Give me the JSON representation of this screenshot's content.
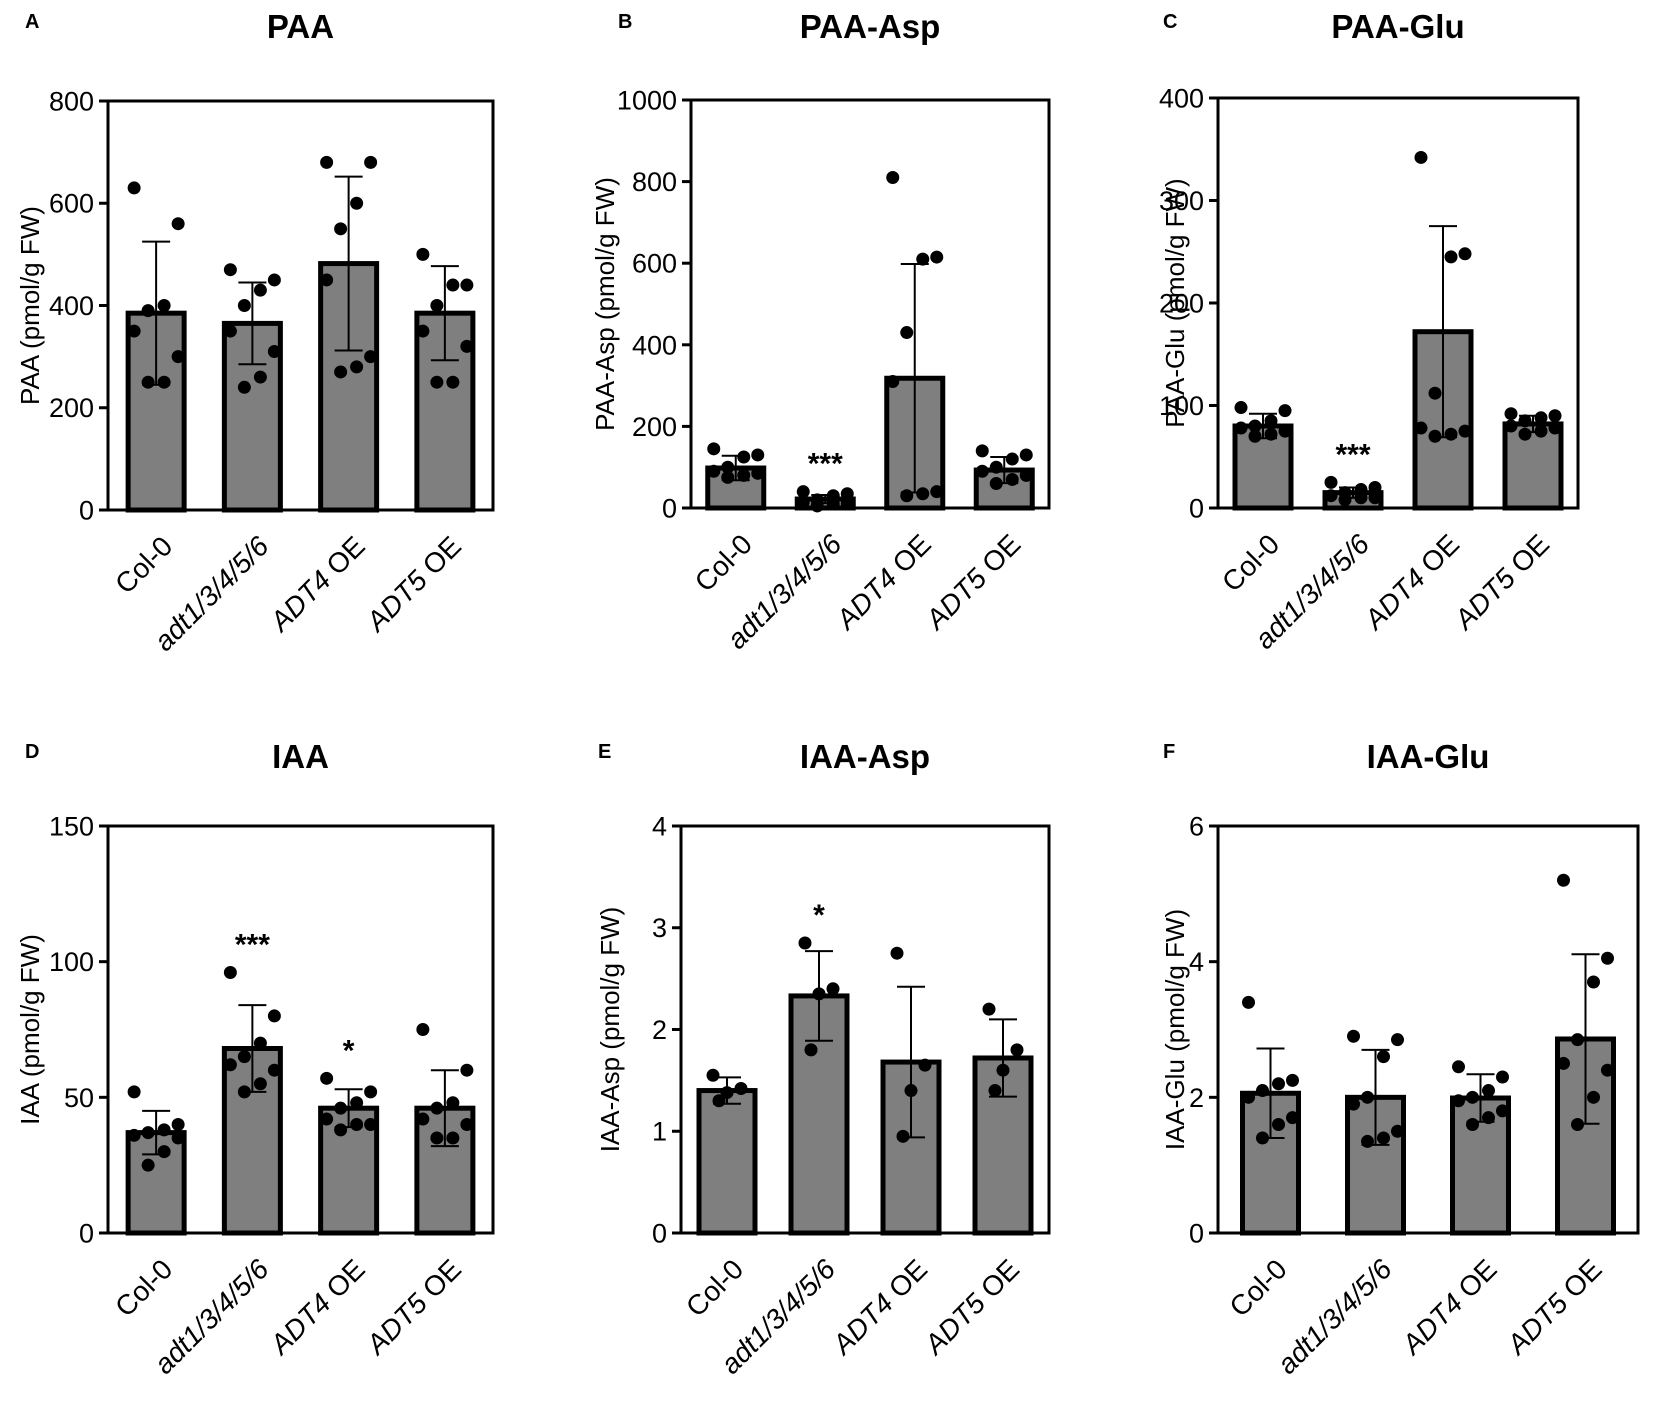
{
  "chart_data": [
    {
      "type": "bar",
      "panel": "A",
      "title": "PAA",
      "ylabel": "PAA (pmol/g FW)",
      "ylim": [
        0,
        800
      ],
      "yticks": [
        0,
        200,
        400,
        600,
        800
      ],
      "categories": [
        "Col-0",
        "adt1/3/4/5/6",
        "ADT4 OE",
        "ADT5 OE"
      ],
      "italic_parts": [
        "",
        "adt1/3/4/5/6",
        "ADT4",
        "ADT5"
      ],
      "values": [
        385,
        365,
        482,
        385
      ],
      "sd": [
        140,
        80,
        170,
        92
      ],
      "points": [
        [
          630,
          560,
          400,
          390,
          350,
          300,
          250,
          250
        ],
        [
          470,
          450,
          430,
          400,
          350,
          310,
          260,
          240
        ],
        [
          680,
          680,
          600,
          550,
          450,
          300,
          280,
          270
        ],
        [
          500,
          440,
          440,
          400,
          350,
          320,
          250,
          250
        ]
      ],
      "significance": [
        "",
        "",
        "",
        ""
      ]
    },
    {
      "type": "bar",
      "panel": "B",
      "title": "PAA-Asp",
      "ylabel": "PAA-Asp (pmol/g FW)",
      "ylim": [
        0,
        1000
      ],
      "yticks": [
        0,
        200,
        400,
        600,
        800,
        1000
      ],
      "categories": [
        "Col-0",
        "adt1/3/4/5/6",
        "ADT4 OE",
        "ADT5 OE"
      ],
      "italic_parts": [
        "",
        "adt1/3/4/5/6",
        "ADT4",
        "ADT5"
      ],
      "values": [
        98,
        22,
        318,
        93
      ],
      "sd": [
        30,
        10,
        280,
        32
      ],
      "points": [
        [
          145,
          130,
          125,
          100,
          90,
          85,
          80,
          75
        ],
        [
          40,
          35,
          30,
          20,
          15,
          10,
          10,
          5
        ],
        [
          810,
          615,
          610,
          430,
          310,
          40,
          35,
          30
        ],
        [
          140,
          130,
          120,
          100,
          90,
          80,
          70,
          60
        ]
      ],
      "significance": [
        "",
        "***",
        "",
        ""
      ]
    },
    {
      "type": "bar",
      "panel": "C",
      "title": "PAA-Glu",
      "ylabel": "PAA-Glu (pmol/g FW)",
      "ylim": [
        0,
        400
      ],
      "yticks": [
        0,
        100,
        200,
        300,
        400
      ],
      "categories": [
        "Col-0",
        "adt1/3/4/5/6",
        "ADT4 OE",
        "ADT5 OE"
      ],
      "italic_parts": [
        "",
        "adt1/3/4/5/6",
        "ADT4",
        "ADT5"
      ],
      "values": [
        80,
        15,
        172,
        82
      ],
      "sd": [
        12,
        5,
        103,
        8
      ],
      "points": [
        [
          98,
          95,
          85,
          80,
          78,
          75,
          72,
          70
        ],
        [
          25,
          20,
          18,
          15,
          12,
          10,
          10,
          8
        ],
        [
          342,
          248,
          245,
          112,
          78,
          75,
          72,
          70
        ],
        [
          92,
          90,
          88,
          85,
          80,
          78,
          75,
          72
        ]
      ],
      "significance": [
        "",
        "***",
        "",
        ""
      ]
    },
    {
      "type": "bar",
      "panel": "D",
      "title": "IAA",
      "ylabel": "IAA (pmol/g FW)",
      "ylim": [
        0,
        150
      ],
      "yticks": [
        0,
        50,
        100,
        150
      ],
      "categories": [
        "Col-0",
        "adt1/3/4/5/6",
        "ADT4 OE",
        "ADT5 OE"
      ],
      "italic_parts": [
        "",
        "adt1/3/4/5/6",
        "ADT4",
        "ADT5"
      ],
      "values": [
        37,
        68,
        46,
        46
      ],
      "sd": [
        8,
        16,
        7,
        14
      ],
      "points": [
        [
          52,
          40,
          38,
          37,
          36,
          35,
          30,
          25
        ],
        [
          96,
          80,
          70,
          65,
          62,
          60,
          55,
          52
        ],
        [
          57,
          52,
          48,
          46,
          42,
          40,
          40,
          38
        ],
        [
          75,
          60,
          48,
          46,
          42,
          40,
          35,
          35
        ]
      ],
      "significance": [
        "",
        "***",
        "*",
        ""
      ]
    },
    {
      "type": "bar",
      "panel": "E",
      "title": "IAA-Asp",
      "ylabel": "IAA-Asp (pmol/g FW)",
      "ylim": [
        0,
        4
      ],
      "yticks": [
        0,
        1,
        2,
        3,
        4
      ],
      "categories": [
        "Col-0",
        "adt1/3/4/5/6",
        "ADT4 OE",
        "ADT5 OE"
      ],
      "italic_parts": [
        "",
        "adt1/3/4/5/6",
        "ADT4",
        "ADT5"
      ],
      "values": [
        1.4,
        2.33,
        1.68,
        1.72
      ],
      "sd": [
        0.13,
        0.44,
        0.74,
        0.38
      ],
      "points": [
        [
          1.55,
          1.42,
          1.38,
          1.3
        ],
        [
          2.85,
          2.4,
          2.35,
          1.8
        ],
        [
          2.75,
          1.65,
          1.4,
          0.95
        ],
        [
          2.2,
          1.8,
          1.6,
          1.4
        ]
      ],
      "significance": [
        "",
        "*",
        "",
        ""
      ]
    },
    {
      "type": "bar",
      "panel": "F",
      "title": "IAA-Glu",
      "ylabel": "IAA-Glu (pmol/g FW)",
      "ylim": [
        0,
        6
      ],
      "yticks": [
        0,
        2,
        4,
        6
      ],
      "categories": [
        "Col-0",
        "adt1/3/4/5/6",
        "ADT4 OE",
        "ADT5 OE"
      ],
      "italic_parts": [
        "",
        "adt1/3/4/5/6",
        "ADT4",
        "ADT5"
      ],
      "values": [
        2.06,
        2.0,
        1.99,
        2.86
      ],
      "sd": [
        0.66,
        0.7,
        0.35,
        1.25
      ],
      "points": [
        [
          3.4,
          2.25,
          2.2,
          2.1,
          2.0,
          1.7,
          1.6,
          1.4
        ],
        [
          2.9,
          2.85,
          2.6,
          2.0,
          1.9,
          1.5,
          1.4,
          1.35
        ],
        [
          2.45,
          2.3,
          2.1,
          2.0,
          1.95,
          1.8,
          1.7,
          1.6
        ],
        [
          5.2,
          4.05,
          3.7,
          2.85,
          2.5,
          2.4,
          2.0,
          1.6
        ]
      ],
      "significance": [
        "",
        "",
        "",
        ""
      ]
    }
  ]
}
